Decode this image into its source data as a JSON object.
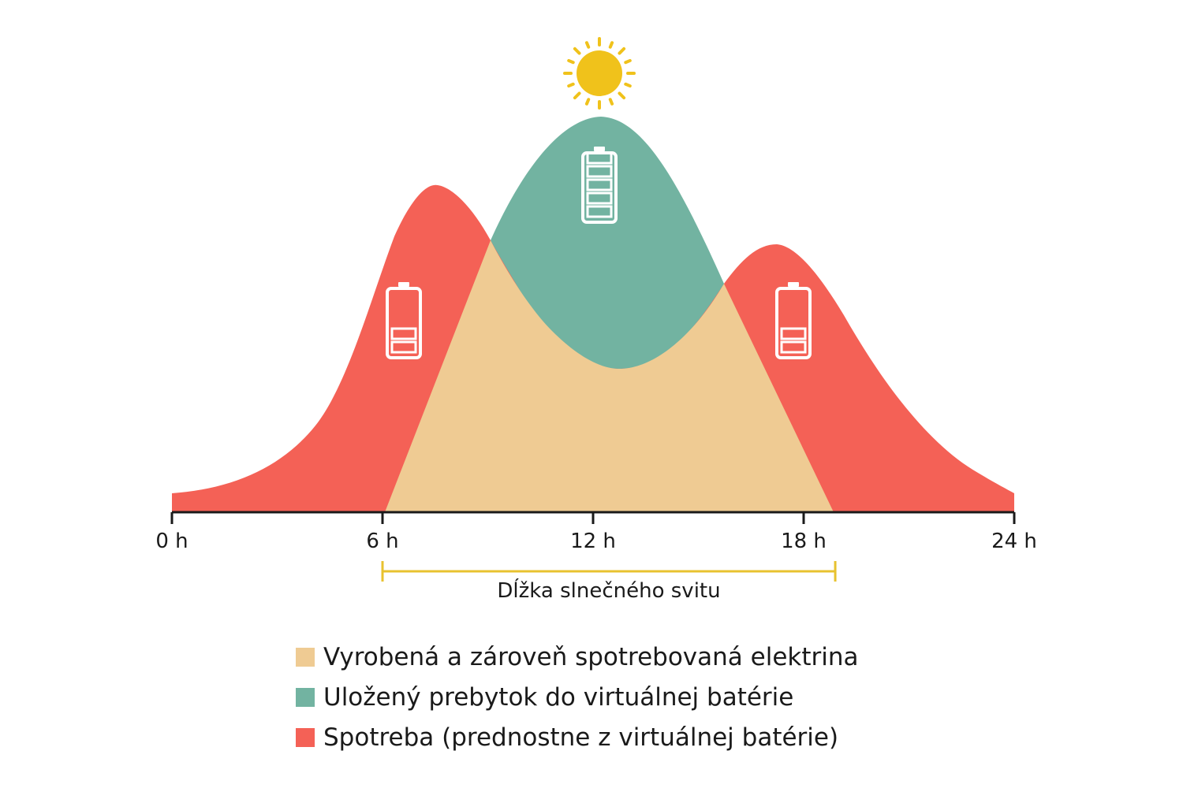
{
  "colors": {
    "produced_consumed": "#efcb93",
    "stored_surplus": "#72b3a1",
    "consumption": "#f46156",
    "sun": "#f0c21b",
    "sunshine_bracket": "#e8c22f",
    "battery_outline": "#ffffff",
    "axis": "#1a1a1a"
  },
  "icons": {
    "sun": "sun-icon",
    "battery_full": "battery-full-icon",
    "battery_low": "battery-low-icon"
  },
  "axis": {
    "ticks": [
      {
        "value": 0,
        "label": "0 h"
      },
      {
        "value": 6,
        "label": "6 h"
      },
      {
        "value": 12,
        "label": "12 h"
      },
      {
        "value": 18,
        "label": "18 h"
      },
      {
        "value": 24,
        "label": "24 h"
      }
    ],
    "range": [
      0,
      24
    ]
  },
  "sunshine": {
    "label": "Dĺžka slnečného svitu",
    "start": 6,
    "end": 18.9
  },
  "battery_levels": {
    "morning": 2,
    "midday": 5,
    "evening": 2
  },
  "legend": [
    {
      "key": "produced_consumed",
      "label": "Vyrobená a zároveň spotrebovaná elektrina"
    },
    {
      "key": "stored_surplus",
      "label": "Uložený prebytok do virtuálnej batérie"
    },
    {
      "key": "consumption",
      "label": "Spotreba (prednostne z virtuálnej batérie)"
    }
  ]
}
